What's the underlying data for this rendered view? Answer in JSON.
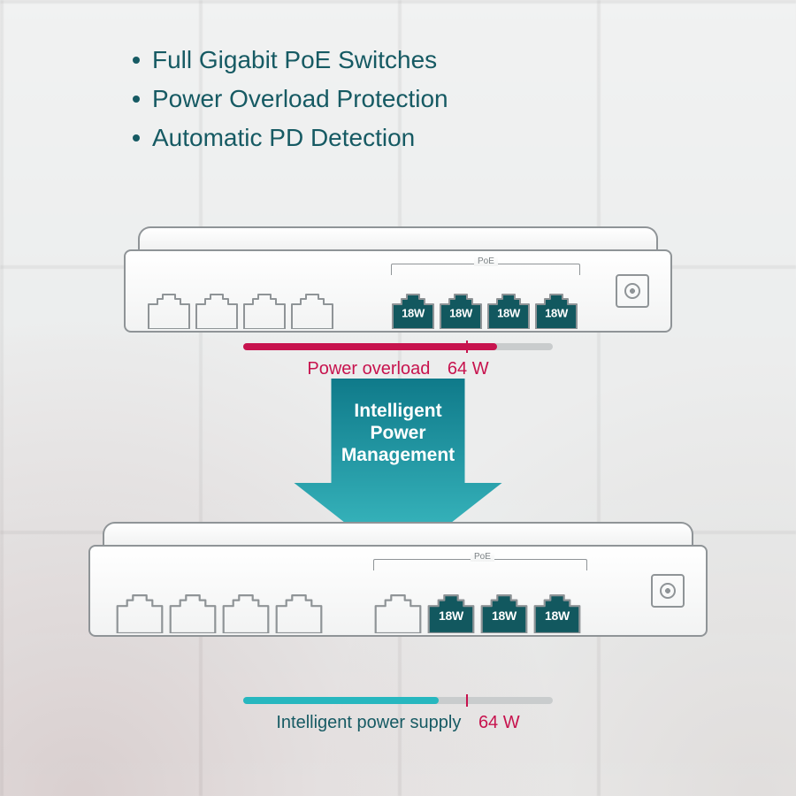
{
  "colors": {
    "teal_text": "#165a63",
    "teal_fill": "#12585f",
    "accent_bullet": "#165a63",
    "overload": "#c7134e",
    "supply": "#27b7bf",
    "track": "#c9cccd",
    "device_stroke": "#8f9497",
    "arrow_top": "#0f7a8a",
    "arrow_bottom": "#3fc0c6",
    "white": "#ffffff"
  },
  "bullets": [
    "Full Gigabit PoE Switches",
    "Power Overload Protection",
    "Automatic PD Detection"
  ],
  "poe_label": "PoE",
  "port_watt_label": "18W",
  "switch_top": {
    "left_empty_ports": 4,
    "right_active_ports": 4,
    "right_empty_ports": 0
  },
  "switch_bottom": {
    "left_empty_ports": 4,
    "right_empty_ports": 1,
    "right_active_ports": 3
  },
  "bar_overload": {
    "label": "Power overload",
    "value_text": "64 W",
    "fill_pct": 82,
    "limit_pct": 72,
    "fill_color": "#c7134e",
    "limit_color": "#c7134e",
    "label_color": "#c7134e",
    "value_color": "#c7134e"
  },
  "bar_supply": {
    "label": "Intelligent power supply",
    "value_text": "64 W",
    "fill_pct": 63,
    "limit_pct": 72,
    "fill_color": "#27b7bf",
    "limit_color": "#c7134e",
    "label_color": "#165a63",
    "value_color": "#c7134e"
  },
  "arrow": {
    "line1": "Intelligent",
    "line2": "Power",
    "line3": "Management"
  }
}
